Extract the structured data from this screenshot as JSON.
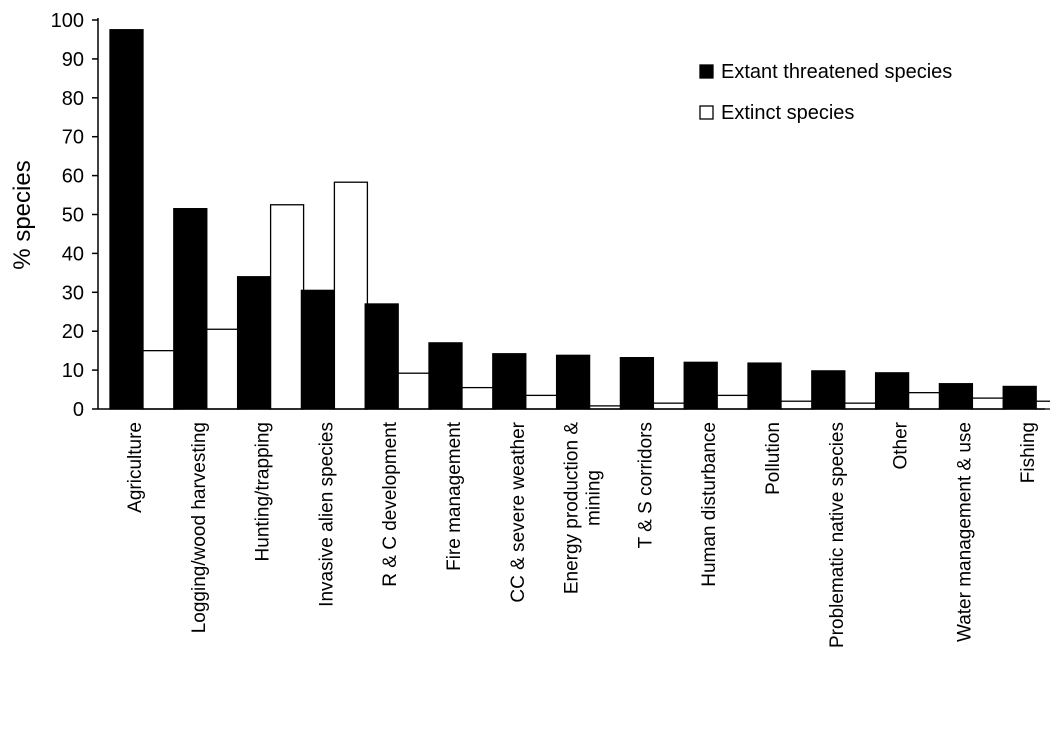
{
  "chart_data": {
    "type": "bar",
    "title": "",
    "xlabel": "",
    "ylabel": "% species",
    "ylim": [
      0,
      100
    ],
    "yticks": [
      0,
      10,
      20,
      30,
      40,
      50,
      60,
      70,
      80,
      90,
      100
    ],
    "grid": false,
    "legend_position": "top-right",
    "categories": [
      "Agriculture",
      "Logging/wood harvesting",
      "Hunting/trapping",
      "Invasive alien species",
      "R & C development",
      "Fire management",
      "CC & severe weather",
      "Energy production & mining",
      "T & S corridors",
      "Human disturbance",
      "Pollution",
      "Problematic native species",
      "Other",
      "Water management & use",
      "Fishing"
    ],
    "series": [
      {
        "name": "Extant threatened species",
        "color": "#000000",
        "values": [
          97.5,
          51.5,
          34,
          30.5,
          27,
          17,
          14.2,
          13.8,
          13.2,
          12,
          11.8,
          9.8,
          9.3,
          6.5,
          5.8
        ]
      },
      {
        "name": "Extinct species",
        "color": "#ffffff",
        "values": [
          15,
          20.5,
          52.5,
          58.3,
          9.2,
          5.5,
          3.5,
          0.8,
          1.5,
          3.5,
          2,
          1.5,
          4.2,
          2.8,
          2
        ]
      }
    ]
  }
}
